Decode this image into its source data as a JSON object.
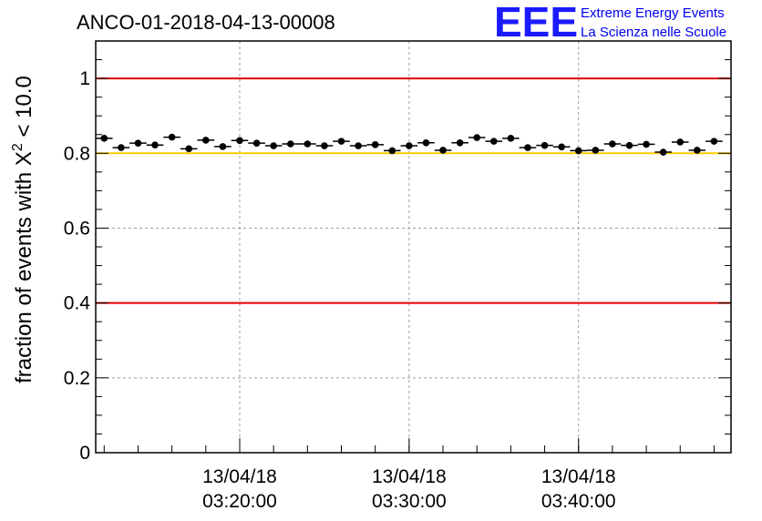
{
  "header": {
    "run_id": "ANCO-01-2018-04-13-00008",
    "logo": "EEE",
    "logo_line1": "Extreme Energy Events",
    "logo_line2": "La Scienza nelle Scuole"
  },
  "chart_data": {
    "type": "scatter",
    "ylabel_prefix": "fraction of events with X",
    "ylabel_sup": "2",
    "ylabel_suffix": " < 10.0",
    "ylim": [
      0,
      1.1
    ],
    "yticks": [
      "0",
      "0.2",
      "0.4",
      "0.6",
      "0.8",
      "1"
    ],
    "xlim": [
      "03:11:30",
      "03:49:00"
    ],
    "xticks": [
      {
        "date": "13/04/18",
        "time": "03:20:00"
      },
      {
        "date": "13/04/18",
        "time": "03:30:00"
      },
      {
        "date": "13/04/18",
        "time": "03:40:00"
      }
    ],
    "grid": true,
    "reference_lines": [
      {
        "y": 1.0,
        "color": "#e00000"
      },
      {
        "y": 0.8,
        "color": "#ffcc00"
      },
      {
        "y": 0.4,
        "color": "#e00000"
      }
    ],
    "series": [
      {
        "x": [
          "03:12:00",
          "03:13:00",
          "03:14:00",
          "03:15:00",
          "03:16:00",
          "03:17:00",
          "03:18:00",
          "03:19:00",
          "03:20:00",
          "03:21:00",
          "03:22:00",
          "03:23:00",
          "03:24:00",
          "03:25:00",
          "03:26:00",
          "03:27:00",
          "03:28:00",
          "03:29:00",
          "03:30:00",
          "03:31:00",
          "03:32:00",
          "03:33:00",
          "03:34:00",
          "03:35:00",
          "03:36:00",
          "03:37:00",
          "03:38:00",
          "03:39:00",
          "03:40:00",
          "03:41:00",
          "03:42:00",
          "03:43:00",
          "03:44:00",
          "03:45:00",
          "03:46:00",
          "03:47:00",
          "03:48:00"
        ],
        "y": [
          0.84,
          0.815,
          0.827,
          0.822,
          0.843,
          0.812,
          0.835,
          0.818,
          0.834,
          0.827,
          0.82,
          0.825,
          0.825,
          0.82,
          0.832,
          0.82,
          0.823,
          0.807,
          0.82,
          0.828,
          0.808,
          0.828,
          0.842,
          0.832,
          0.84,
          0.815,
          0.821,
          0.817,
          0.807,
          0.808,
          0.825,
          0.821,
          0.824,
          0.803,
          0.83,
          0.808,
          0.832
        ],
        "color": "#000000"
      }
    ]
  }
}
